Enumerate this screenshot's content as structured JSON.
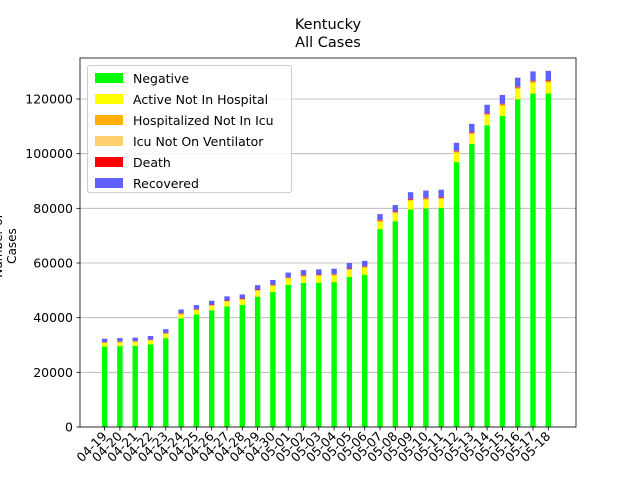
{
  "chart_data": {
    "type": "bar",
    "title": "Kentucky",
    "subtitle": "All Cases",
    "ylabel": "Number of Cases",
    "xlabel": "",
    "ylim": [
      0,
      135000
    ],
    "yticks": [
      0,
      20000,
      40000,
      60000,
      80000,
      100000,
      120000
    ],
    "grid": "horizontal",
    "legend_position": "top-left",
    "stacked": true,
    "categories": [
      "04-19",
      "04-20",
      "04-21",
      "04-22",
      "04-23",
      "04-24",
      "04-25",
      "04-26",
      "04-27",
      "04-28",
      "04-29",
      "04-30",
      "05-01",
      "05-02",
      "05-03",
      "05-04",
      "05-05",
      "05-06",
      "05-07",
      "05-08",
      "05-09",
      "05-10",
      "05-11",
      "05-12",
      "05-13",
      "05-14",
      "05-15",
      "05-16",
      "05-17",
      "05-18"
    ],
    "series": [
      {
        "name": "Negative",
        "color": "#00ff00",
        "values": [
          29400,
          29600,
          29700,
          30200,
          32500,
          39700,
          41200,
          42700,
          44100,
          44700,
          47700,
          49400,
          52000,
          52700,
          52800,
          53000,
          54900,
          55600,
          72400,
          75300,
          79600,
          80000,
          80100,
          96900,
          103600,
          110400,
          113800,
          119900,
          122000,
          122000
        ]
      },
      {
        "name": "Active Not In Hospital",
        "color": "#ffff00",
        "values": [
          1300,
          1300,
          1400,
          1400,
          1500,
          1500,
          1500,
          1600,
          1700,
          1800,
          2000,
          2100,
          2200,
          2300,
          2400,
          2400,
          2500,
          2600,
          2700,
          2900,
          3100,
          3200,
          3300,
          3400,
          3500,
          3600,
          3700,
          3800,
          3900,
          4000
        ]
      },
      {
        "name": "Hospitalized Not In Icu",
        "color": "#ffb000",
        "values": [
          200,
          200,
          200,
          200,
          200,
          200,
          200,
          200,
          200,
          200,
          300,
          300,
          300,
          300,
          300,
          300,
          300,
          300,
          300,
          300,
          300,
          300,
          300,
          400,
          400,
          400,
          400,
          400,
          400,
          400
        ]
      },
      {
        "name": "Icu Not On Ventilator",
        "color": "#ffd070",
        "values": [
          100,
          100,
          100,
          100,
          100,
          100,
          100,
          100,
          100,
          100,
          100,
          100,
          100,
          100,
          100,
          100,
          100,
          100,
          100,
          100,
          100,
          100,
          100,
          100,
          100,
          100,
          100,
          100,
          100,
          100
        ]
      },
      {
        "name": "Death",
        "color": "#ff0000",
        "values": [
          100,
          100,
          100,
          100,
          200,
          200,
          200,
          200,
          200,
          200,
          200,
          200,
          200,
          200,
          200,
          200,
          200,
          200,
          300,
          300,
          300,
          300,
          300,
          300,
          300,
          300,
          300,
          300,
          300,
          300
        ]
      },
      {
        "name": "Recovered",
        "color": "#6060ff",
        "values": [
          1200,
          1200,
          1200,
          1300,
          1300,
          1300,
          1400,
          1400,
          1500,
          1500,
          1600,
          1700,
          1700,
          1800,
          1900,
          1900,
          2000,
          2000,
          2100,
          2300,
          2500,
          2600,
          2700,
          2900,
          3000,
          3100,
          3200,
          3300,
          3400,
          3500
        ]
      }
    ]
  }
}
